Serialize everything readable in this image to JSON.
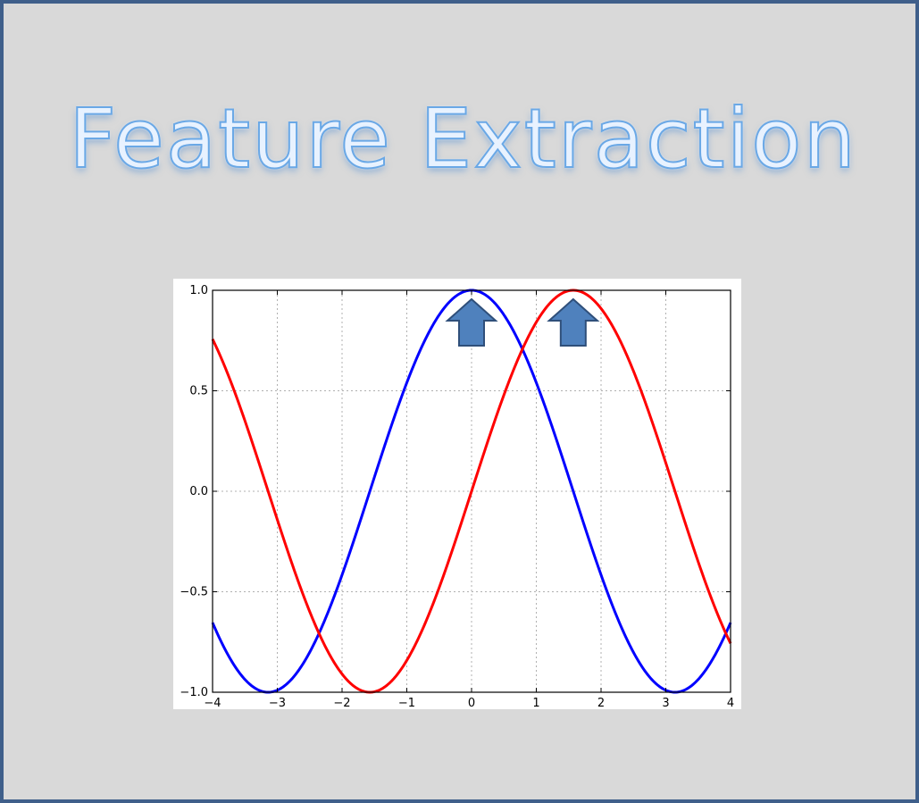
{
  "slide": {
    "title": "Feature Extraction",
    "colors": {
      "background": "#d9d9d9",
      "frame": "#3f5f8a",
      "title_fill": "#e8f2ff",
      "title_glow": "#6aa8e6"
    }
  },
  "chart_data": {
    "type": "line",
    "title": "",
    "xlabel": "",
    "ylabel": "",
    "xlim": [
      -4,
      4
    ],
    "ylim": [
      -1.0,
      1.0
    ],
    "xticks": [
      -4,
      -3,
      -2,
      -1,
      0,
      1,
      2,
      3,
      4
    ],
    "xtick_labels": [
      "−4",
      "−3",
      "−2",
      "−1",
      "0",
      "1",
      "2",
      "3",
      "4"
    ],
    "yticks": [
      -1.0,
      -0.5,
      0.0,
      0.5,
      1.0
    ],
    "ytick_labels": [
      "−1.0",
      "−0.5",
      "0.0",
      "0.5",
      "1.0"
    ],
    "grid": true,
    "series": [
      {
        "color": "#0000ff",
        "function": "cos(x)",
        "x": [
          -4,
          -3.5,
          -3,
          -2.5,
          -2,
          -1.5,
          -1,
          -0.5,
          0,
          0.5,
          1,
          1.5,
          2,
          2.5,
          3,
          3.5,
          4
        ],
        "values": [
          -0.65,
          -0.94,
          -0.99,
          -0.8,
          -0.42,
          0.07,
          0.54,
          0.88,
          1.0,
          0.88,
          0.54,
          0.07,
          -0.42,
          -0.8,
          -0.99,
          -0.94,
          -0.65
        ]
      },
      {
        "color": "#ff0000",
        "function": "sin(x)",
        "x": [
          -4,
          -3.5,
          -3,
          -2.5,
          -2,
          -1.5,
          -1,
          -0.5,
          0,
          0.5,
          1,
          1.5,
          2,
          2.5,
          3,
          3.5,
          4
        ],
        "values": [
          0.76,
          0.35,
          -0.14,
          -0.6,
          -0.91,
          -1.0,
          -0.84,
          -0.48,
          0.0,
          0.48,
          0.84,
          1.0,
          0.91,
          0.6,
          0.14,
          -0.35,
          -0.76
        ]
      }
    ],
    "annotations": [
      {
        "type": "up-arrow",
        "x": 0.0,
        "y": 1.0,
        "color": "#4f81bd",
        "marks": "peak of blue series"
      },
      {
        "type": "up-arrow",
        "x": 1.57,
        "y": 1.0,
        "color": "#4f81bd",
        "marks": "peak of red series"
      }
    ]
  }
}
